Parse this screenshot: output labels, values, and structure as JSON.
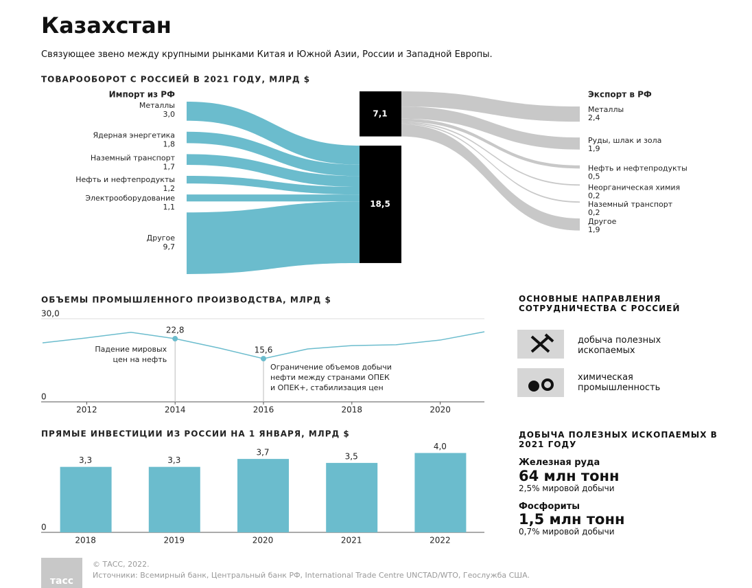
{
  "header": {
    "title": "Казахстан",
    "subtitle": "Связующее звено между крупными рынками Китая и Южной Азии, России и Западной Европы."
  },
  "chart_data": [
    {
      "type": "sankey",
      "title": "ТОВАРООБОРОТ С РОССИЕЙ В 2021 ГОДУ, МЛРД $",
      "color": "#6bbccd",
      "color2": "#c8c8c8",
      "imports": {
        "name": "Импорт из РФ",
        "categories": [
          "Металлы",
          "Ядерная энергетика",
          "Наземный транспорт",
          "Нефть и нефтепродукты",
          "Электрооборудование",
          "Другое"
        ],
        "values": [
          3.0,
          1.8,
          1.7,
          1.2,
          1.1,
          9.7
        ],
        "value_labels": [
          "3,0",
          "1,8",
          "1,7",
          "1,2",
          "1,1",
          "9,7"
        ],
        "total": 18.5,
        "total_label": "18,5"
      },
      "exports": {
        "name": "Экспорт в РФ",
        "categories": [
          "Металлы",
          "Руды, шлак и зола",
          "Нефть и нефтепродукты",
          "Неорганическая химия",
          "Наземный транспорт",
          "Другое"
        ],
        "values": [
          2.4,
          1.9,
          0.5,
          0.2,
          0.2,
          1.9
        ],
        "value_labels": [
          "2,4",
          "1,9",
          "0,5",
          "0,2",
          "0,2",
          "1,9"
        ],
        "total": 7.1,
        "total_label": "7,1"
      }
    },
    {
      "type": "line",
      "title": "ОБЪЕМЫ ПРОМЫШЛЕННОГО ПРОИЗВОДСТВА, МЛРД $",
      "color": "#6bbccd",
      "x": [
        2011,
        2012,
        2013,
        2014,
        2015,
        2016,
        2017,
        2018,
        2019,
        2020,
        2021
      ],
      "values": [
        21.3,
        23.1,
        25.1,
        22.8,
        19.4,
        15.6,
        19.1,
        20.3,
        20.6,
        22.3,
        25.3
      ],
      "value_labels": [
        null,
        null,
        null,
        "22,8",
        null,
        "15,6",
        null,
        null,
        null,
        null,
        null
      ],
      "xlim": [
        2011,
        2021
      ],
      "xticks": [
        2012,
        2014,
        2016,
        2018,
        2020
      ],
      "ylim": [
        0,
        30
      ],
      "yticks": [
        0,
        {
          "value": 30,
          "label": "30,0"
        }
      ],
      "grid": true,
      "annotations": [
        {
          "x": 2014,
          "lines": [
            "Падение мировых",
            "цен на нефть"
          ]
        },
        {
          "x": 2016,
          "lines": [
            "Ограничение объемов добычи",
            "нефти между странами ОПЕК",
            "и ОПЕК+, стабилизация цен"
          ]
        }
      ]
    },
    {
      "type": "bar",
      "title": "ПРЯМЫЕ ИНВЕСТИЦИИ ИЗ РОССИИ НА 1 ЯНВАРЯ, МЛРД $",
      "color": "#6bbccd",
      "categories": [
        "2018",
        "2019",
        "2020",
        "2021",
        "2022"
      ],
      "values": [
        3.3,
        3.3,
        3.7,
        3.5,
        4.0
      ],
      "value_labels": [
        "3,3",
        "3,3",
        "3,7",
        "3,5",
        "4,0"
      ],
      "ylim": [
        0,
        4.5
      ],
      "yticks": [
        0
      ]
    }
  ],
  "cooperation": {
    "title": "ОСНОВНЫЕ НАПРАВЛЕНИЯ СОТРУДНИЧЕСТВА С РОССИЕЙ",
    "items": [
      "добыча полезных ископаемых",
      "химическая промышленность"
    ]
  },
  "mining": {
    "title": "ДОБЫЧА ПОЛЕЗНЫХ ИСКОПАЕМЫХ В 2021 ГОДУ",
    "items": [
      {
        "name": "Железная руда",
        "amount": "64 млн тонн",
        "share": "2,5% мировой добычи"
      },
      {
        "name": "Фосфориты",
        "amount": "1,5 млн тонн",
        "share": "0,7% мировой добычи"
      }
    ]
  },
  "footer": {
    "logo": "тасс",
    "copyright": "© ТАСС, 2022.",
    "sources": "Источники: Всемирный банк, Центральный банк РФ, International Trade Centre UNCTAD/WTO, Геослужба США."
  }
}
